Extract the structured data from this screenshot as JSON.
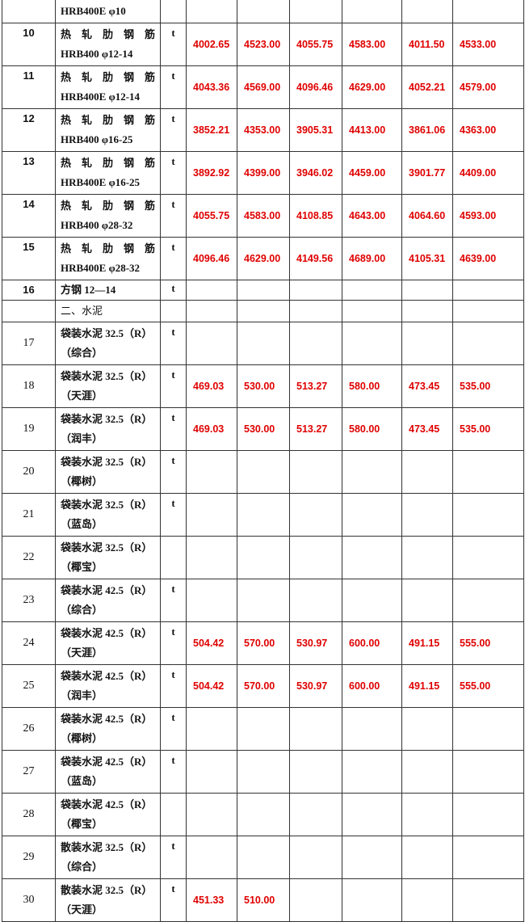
{
  "colors": {
    "value_text": "#e00000",
    "border": "#333333"
  },
  "top_partial": {
    "name": "HRB400E φ10"
  },
  "steel_rows": [
    {
      "no": "10",
      "name1": "热 轧 肋 钢 筋",
      "name2": "HRB400 φ12-14",
      "unit": "t",
      "values": [
        "4002.65",
        "4523.00",
        "4055.75",
        "4583.00",
        "4011.50",
        "4533.00"
      ]
    },
    {
      "no": "11",
      "name1": "热 轧 肋 钢 筋",
      "name2": "HRB400E φ12-14",
      "unit": "t",
      "values": [
        "4043.36",
        "4569.00",
        "4096.46",
        "4629.00",
        "4052.21",
        "4579.00"
      ]
    },
    {
      "no": "12",
      "name1": "热 轧 肋 钢 筋",
      "name2": "HRB400 φ16-25",
      "unit": "t",
      "values": [
        "3852.21",
        "4353.00",
        "3905.31",
        "4413.00",
        "3861.06",
        "4363.00"
      ]
    },
    {
      "no": "13",
      "name1": "热 轧 肋 钢 筋",
      "name2": "HRB400E φ16-25",
      "unit": "t",
      "values": [
        "3892.92",
        "4399.00",
        "3946.02",
        "4459.00",
        "3901.77",
        "4409.00"
      ]
    },
    {
      "no": "14",
      "name1": "热 轧 肋 钢 筋",
      "name2": "HRB400 φ28-32",
      "unit": "t",
      "values": [
        "4055.75",
        "4583.00",
        "4108.85",
        "4643.00",
        "4064.60",
        "4593.00"
      ]
    },
    {
      "no": "15",
      "name1": "热 轧 肋 钢 筋",
      "name2": "HRB400E φ28-32",
      "unit": "t",
      "values": [
        "4096.46",
        "4629.00",
        "4149.56",
        "4689.00",
        "4105.31",
        "4639.00"
      ]
    }
  ],
  "row16": {
    "no": "16",
    "name": "方钢 12—14",
    "unit": "t"
  },
  "section": "二、水泥",
  "cement_rows": [
    {
      "no": "17",
      "name1": "袋装水泥 32.5（R）",
      "name2": "（综合）",
      "unit": "t",
      "values": [
        "",
        "",
        "",
        "",
        "",
        ""
      ]
    },
    {
      "no": "18",
      "name1": "袋装水泥 32.5（R）",
      "name2": "（天涯）",
      "unit": "t",
      "values": [
        "469.03",
        "530.00",
        "513.27",
        "580.00",
        "473.45",
        "535.00"
      ]
    },
    {
      "no": "19",
      "name1": "袋装水泥 32.5（R）",
      "name2": "（润丰）",
      "unit": "t",
      "values": [
        "469.03",
        "530.00",
        "513.27",
        "580.00",
        "473.45",
        "535.00"
      ]
    },
    {
      "no": "20",
      "name1": "袋装水泥 32.5（R）",
      "name2": "（椰树）",
      "unit": "t",
      "values": [
        "",
        "",
        "",
        "",
        "",
        ""
      ]
    },
    {
      "no": "21",
      "name1": "袋装水泥 32.5（R）",
      "name2": "（蓝岛）",
      "unit": "t",
      "values": [
        "",
        "",
        "",
        "",
        "",
        ""
      ]
    },
    {
      "no": "22",
      "name1": "袋装水泥 32.5（R）",
      "name2": "（椰宝）",
      "unit": "",
      "values": [
        "",
        "",
        "",
        "",
        "",
        ""
      ]
    },
    {
      "no": "23",
      "name1": "袋装水泥 42.5（R）",
      "name2": "（综合）",
      "unit": "t",
      "values": [
        "",
        "",
        "",
        "",
        "",
        ""
      ]
    },
    {
      "no": "24",
      "name1": "袋装水泥 42.5（R）",
      "name2": "（天涯）",
      "unit": "t",
      "values": [
        "504.42",
        "570.00",
        "530.97",
        "600.00",
        "491.15",
        "555.00"
      ]
    },
    {
      "no": "25",
      "name1": "袋装水泥 42.5（R）",
      "name2": "（润丰）",
      "unit": "t",
      "values": [
        "504.42",
        "570.00",
        "530.97",
        "600.00",
        "491.15",
        "555.00"
      ]
    },
    {
      "no": "26",
      "name1": "袋装水泥 42.5（R）",
      "name2": "（椰树）",
      "unit": "t",
      "values": [
        "",
        "",
        "",
        "",
        "",
        ""
      ]
    },
    {
      "no": "27",
      "name1": "袋装水泥 42.5（R）",
      "name2": "（蓝岛）",
      "unit": "t",
      "values": [
        "",
        "",
        "",
        "",
        "",
        ""
      ]
    },
    {
      "no": "28",
      "name1": "袋装水泥 42.5（R）",
      "name2": "（椰宝）",
      "unit": "",
      "values": [
        "",
        "",
        "",
        "",
        "",
        ""
      ]
    },
    {
      "no": "29",
      "name1": "散装水泥 32.5（R）",
      "name2": "（综合）",
      "unit": "t",
      "values": [
        "",
        "",
        "",
        "",
        "",
        ""
      ]
    },
    {
      "no": "30",
      "name1": "散装水泥 32.5（R）",
      "name2": "（天涯）",
      "unit": "t",
      "values": [
        "451.33",
        "510.00",
        "",
        "",
        "",
        ""
      ]
    }
  ]
}
